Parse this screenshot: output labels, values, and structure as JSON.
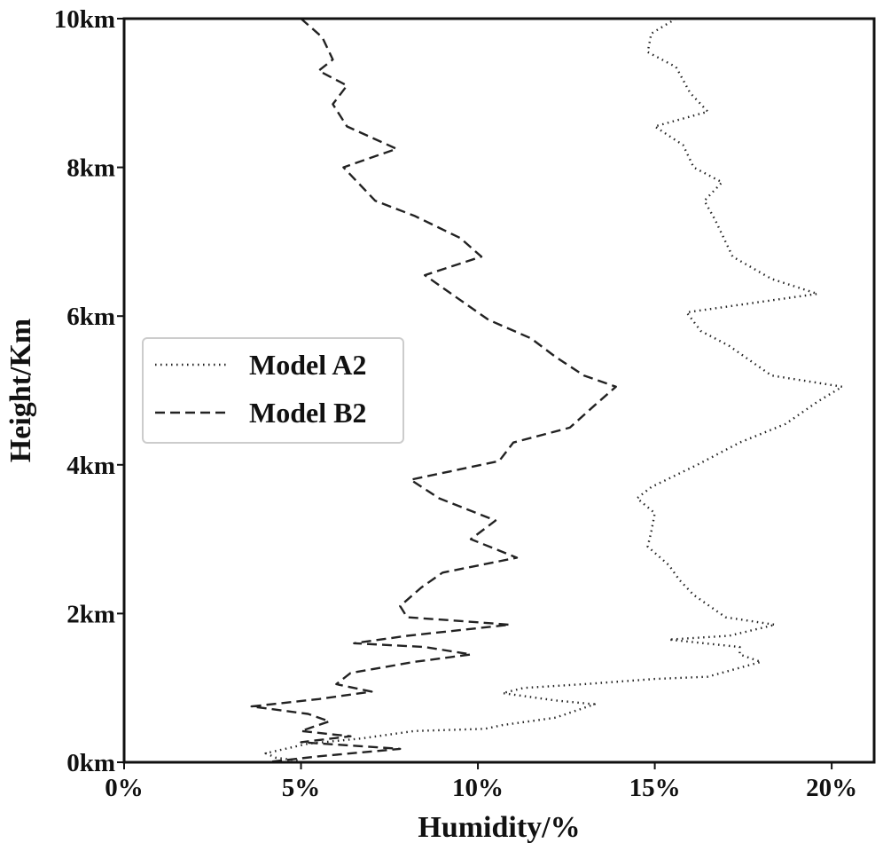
{
  "chart_data": {
    "type": "line",
    "xlabel": "Humidity/%",
    "ylabel": "Height/Km",
    "xlim": [
      0,
      21.2
    ],
    "ylim": [
      0,
      10
    ],
    "x_ticks": [
      0,
      5,
      10,
      15,
      20
    ],
    "x_tick_labels": [
      "0%",
      "5%",
      "10%",
      "15%",
      "20%"
    ],
    "y_ticks": [
      0,
      2,
      4,
      6,
      8,
      10
    ],
    "y_tick_labels": [
      "0km",
      "2km",
      "4km",
      "6km",
      "8km",
      "10km"
    ],
    "grid": false,
    "legend_position": "middle-left",
    "series": [
      {
        "name": "Model A2",
        "style": "dotted",
        "color": "#222222",
        "points": [
          [
            15.6,
            10.0
          ],
          [
            14.9,
            9.8
          ],
          [
            14.8,
            9.55
          ],
          [
            15.6,
            9.35
          ],
          [
            16.0,
            9.0
          ],
          [
            16.5,
            8.75
          ],
          [
            15.0,
            8.55
          ],
          [
            15.8,
            8.3
          ],
          [
            16.1,
            8.0
          ],
          [
            16.9,
            7.8
          ],
          [
            16.4,
            7.55
          ],
          [
            16.7,
            7.3
          ],
          [
            17.2,
            6.8
          ],
          [
            18.3,
            6.5
          ],
          [
            19.6,
            6.3
          ],
          [
            15.9,
            6.05
          ],
          [
            16.3,
            5.8
          ],
          [
            17.1,
            5.6
          ],
          [
            17.7,
            5.4
          ],
          [
            18.3,
            5.2
          ],
          [
            20.3,
            5.05
          ],
          [
            19.6,
            4.85
          ],
          [
            18.7,
            4.55
          ],
          [
            17.4,
            4.3
          ],
          [
            16.2,
            4.0
          ],
          [
            14.9,
            3.7
          ],
          [
            14.5,
            3.55
          ],
          [
            15.0,
            3.35
          ],
          [
            14.9,
            3.1
          ],
          [
            14.8,
            2.9
          ],
          [
            15.4,
            2.65
          ],
          [
            15.7,
            2.45
          ],
          [
            16.1,
            2.25
          ],
          [
            17.0,
            1.95
          ],
          [
            18.4,
            1.85
          ],
          [
            17.1,
            1.7
          ],
          [
            15.4,
            1.65
          ],
          [
            17.4,
            1.55
          ],
          [
            17.4,
            1.45
          ],
          [
            18.0,
            1.35
          ],
          [
            16.5,
            1.15
          ],
          [
            15.0,
            1.12
          ],
          [
            13.0,
            1.05
          ],
          [
            11.3,
            1.0
          ],
          [
            10.7,
            0.93
          ],
          [
            12.2,
            0.83
          ],
          [
            13.3,
            0.78
          ],
          [
            12.2,
            0.6
          ],
          [
            10.7,
            0.5
          ],
          [
            10.2,
            0.45
          ],
          [
            8.2,
            0.42
          ],
          [
            6.7,
            0.32
          ],
          [
            5.2,
            0.25
          ],
          [
            4.0,
            0.12
          ],
          [
            4.3,
            0.06
          ],
          [
            5.0,
            0.02
          ]
        ]
      },
      {
        "name": "Model B2",
        "style": "dashed",
        "color": "#222222",
        "points": [
          [
            5.0,
            10.0
          ],
          [
            5.6,
            9.75
          ],
          [
            5.9,
            9.45
          ],
          [
            5.5,
            9.3
          ],
          [
            6.3,
            9.1
          ],
          [
            5.9,
            8.85
          ],
          [
            6.3,
            8.55
          ],
          [
            7.7,
            8.25
          ],
          [
            6.2,
            8.0
          ],
          [
            7.1,
            7.55
          ],
          [
            8.2,
            7.35
          ],
          [
            9.5,
            7.05
          ],
          [
            10.1,
            6.8
          ],
          [
            8.5,
            6.55
          ],
          [
            9.4,
            6.25
          ],
          [
            10.3,
            5.95
          ],
          [
            11.5,
            5.7
          ],
          [
            12.2,
            5.45
          ],
          [
            13.0,
            5.2
          ],
          [
            13.9,
            5.05
          ],
          [
            13.3,
            4.8
          ],
          [
            12.6,
            4.5
          ],
          [
            11.0,
            4.3
          ],
          [
            10.6,
            4.05
          ],
          [
            8.1,
            3.8
          ],
          [
            8.9,
            3.55
          ],
          [
            10.5,
            3.25
          ],
          [
            9.8,
            3.0
          ],
          [
            11.1,
            2.75
          ],
          [
            9.0,
            2.55
          ],
          [
            8.4,
            2.35
          ],
          [
            7.8,
            2.1
          ],
          [
            8.0,
            1.95
          ],
          [
            9.5,
            1.9
          ],
          [
            10.9,
            1.85
          ],
          [
            8.0,
            1.7
          ],
          [
            6.5,
            1.6
          ],
          [
            8.5,
            1.55
          ],
          [
            9.8,
            1.45
          ],
          [
            8.2,
            1.35
          ],
          [
            6.4,
            1.2
          ],
          [
            6.0,
            1.05
          ],
          [
            7.0,
            0.95
          ],
          [
            5.5,
            0.85
          ],
          [
            3.6,
            0.75
          ],
          [
            5.2,
            0.65
          ],
          [
            5.8,
            0.55
          ],
          [
            5.0,
            0.42
          ],
          [
            6.4,
            0.35
          ],
          [
            5.0,
            0.27
          ],
          [
            7.8,
            0.18
          ],
          [
            5.5,
            0.08
          ],
          [
            4.0,
            0.0
          ]
        ]
      }
    ]
  }
}
